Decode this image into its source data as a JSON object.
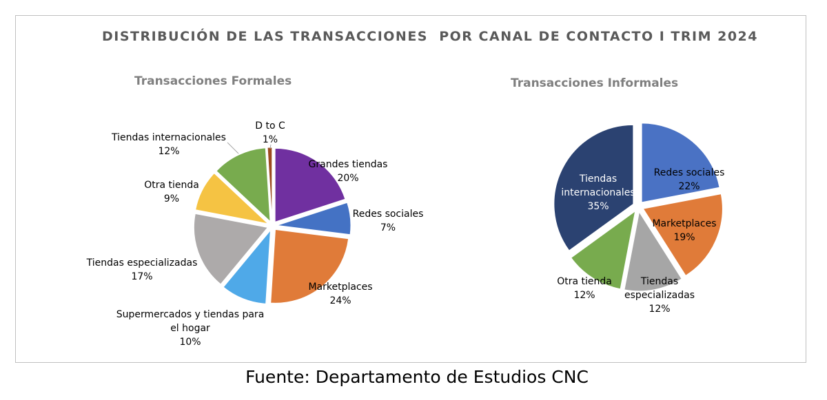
{
  "title": "DISTRIBUCIÓN DE LAS TRANSACCIONES  POR CANAL DE CONTACTO I TRIM 2024",
  "source": "Fuente: Departamento de Estudios CNC",
  "chart_data": [
    {
      "type": "pie",
      "title": "Transacciones Formales",
      "slices": [
        {
          "name": "Grandes tiendas",
          "value": 20,
          "label": "20%",
          "color": "#7030a0"
        },
        {
          "name": "Redes sociales",
          "value": 7,
          "label": "7%",
          "color": "#4472c4"
        },
        {
          "name": "Marketplaces",
          "value": 24,
          "label": "24%",
          "color": "#e07b39"
        },
        {
          "name": "Supermercados y tiendas para el hogar",
          "value": 10,
          "label": "10%",
          "color": "#4fa9e8"
        },
        {
          "name": "Tiendas especializadas",
          "value": 17,
          "label": "17%",
          "color": "#adaaaa"
        },
        {
          "name": "Otra tienda",
          "value": 9,
          "label": "9%",
          "color": "#f5c343"
        },
        {
          "name": "Tiendas internacionales",
          "value": 12,
          "label": "12%",
          "color": "#78ab4e"
        },
        {
          "name": "D to C",
          "value": 1,
          "label": "1%",
          "color": "#9c4a1e"
        }
      ]
    },
    {
      "type": "pie",
      "title": "Transacciones Informales",
      "slices": [
        {
          "name": "Redes sociales",
          "value": 22,
          "label": "22%",
          "color": "#4a72c4"
        },
        {
          "name": "Marketplaces",
          "value": 19,
          "label": "19%",
          "color": "#e07b39"
        },
        {
          "name": "Tiendas especializadas",
          "value": 12,
          "label": "12%",
          "color": "#a6a6a6"
        },
        {
          "name": "Otra tienda",
          "value": 12,
          "label": "12%",
          "color": "#78ab4e"
        },
        {
          "name": "Tiendas internacionales",
          "value": 35,
          "label": "35%",
          "color": "#2b4271"
        }
      ]
    }
  ]
}
